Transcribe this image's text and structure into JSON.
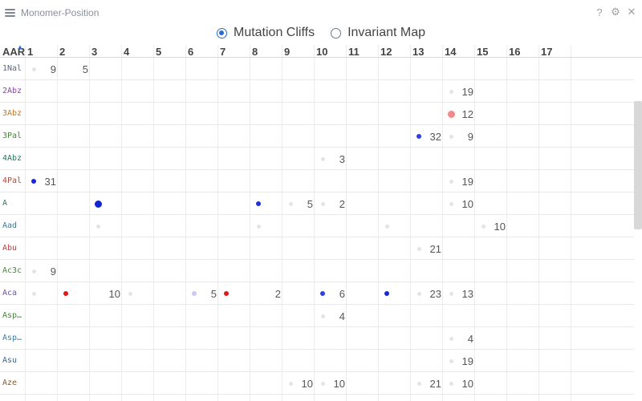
{
  "window": {
    "title": "Monomer-Position",
    "icons": [
      "hamburger-icon",
      "help-icon",
      "settings-icon",
      "close-icon"
    ],
    "help_glyph": "?",
    "settings_glyph": "⚙",
    "close_glyph": "✕"
  },
  "modes": [
    {
      "label": "Mutation Cliffs",
      "checked": true
    },
    {
      "label": "Invariant Map",
      "checked": false
    }
  ],
  "grid": {
    "first_header": "AAR",
    "positions": [
      "1",
      "2",
      "3",
      "4",
      "5",
      "6",
      "7",
      "8",
      "9",
      "10",
      "11",
      "12",
      "13",
      "14",
      "15",
      "16",
      "17"
    ],
    "rows": [
      {
        "label": "1Nal",
        "color": "#5c6c82",
        "cells": [
          {
            "pos": 1,
            "dot": "tiny",
            "color": "#e3e3ea",
            "count": "9"
          },
          {
            "pos": 2,
            "dot": null,
            "color": null,
            "count": "5"
          }
        ]
      },
      {
        "label": "2Abz",
        "color": "#8a3fb0",
        "cells": [
          {
            "pos": 14,
            "dot": "tiny",
            "color": "#e3e3ea",
            "count": "19"
          }
        ]
      },
      {
        "label": "3Abz",
        "color": "#c8761a",
        "cells": [
          {
            "pos": 14,
            "dot": "large",
            "color": "#f28a8a",
            "count": "12"
          }
        ]
      },
      {
        "label": "3Pal",
        "color": "#3c8a2e",
        "cells": [
          {
            "pos": 13,
            "dot": "small",
            "color": "#2f3fe8",
            "count": "32"
          },
          {
            "pos": 14,
            "dot": "tiny",
            "color": "#e3e3ea",
            "count": "9"
          }
        ]
      },
      {
        "label": "4Abz",
        "color": "#1f7a5c",
        "cells": [
          {
            "pos": 10,
            "dot": "tiny",
            "color": "#e3e3ea",
            "count": "3"
          }
        ]
      },
      {
        "label": "4Pal",
        "color": "#b8452f",
        "cells": [
          {
            "pos": 1,
            "dot": "small",
            "color": "#1828d8",
            "count": "31"
          },
          {
            "pos": 14,
            "dot": "tiny",
            "color": "#e3e3ea",
            "count": "19"
          }
        ]
      },
      {
        "label": "A",
        "color": "#2a7a6a",
        "cells": [
          {
            "pos": 3,
            "dot": "large",
            "color": "#1326d6",
            "count": ""
          },
          {
            "pos": 8,
            "dot": "small",
            "color": "#1e30de",
            "count": ""
          },
          {
            "pos": 9,
            "dot": "tiny",
            "color": "#e3e3ea",
            "count": "5"
          },
          {
            "pos": 10,
            "dot": "tiny",
            "color": "#e3e3ea",
            "count": "2"
          },
          {
            "pos": 14,
            "dot": "tiny",
            "color": "#e3e3ea",
            "count": "10"
          }
        ]
      },
      {
        "label": "Aad",
        "color": "#2a7fa8",
        "cells": [
          {
            "pos": 3,
            "dot": "tiny",
            "color": "#e3e3ea",
            "count": ""
          },
          {
            "pos": 8,
            "dot": "tiny",
            "color": "#e3e3ea",
            "count": ""
          },
          {
            "pos": 12,
            "dot": "tiny",
            "color": "#e3e3ea",
            "count": ""
          },
          {
            "pos": 15,
            "dot": "tiny",
            "color": "#e3e3ea",
            "count": "10"
          }
        ]
      },
      {
        "label": "Abu",
        "color": "#c83a3a",
        "cells": [
          {
            "pos": 13,
            "dot": "tiny",
            "color": "#e3e3ea",
            "count": "21"
          }
        ]
      },
      {
        "label": "Ac3c",
        "color": "#3c8a2e",
        "cells": [
          {
            "pos": 1,
            "dot": "tiny",
            "color": "#e3e3ea",
            "count": "9"
          }
        ]
      },
      {
        "label": "Aca",
        "color": "#6a4fb0",
        "cells": [
          {
            "pos": 1,
            "dot": "tiny",
            "color": "#e3e3ea",
            "count": ""
          },
          {
            "pos": 2,
            "dot": "small",
            "color": "#e01818",
            "count": ""
          },
          {
            "pos": 3,
            "dot": null,
            "color": null,
            "count": "10"
          },
          {
            "pos": 4,
            "dot": "tiny",
            "color": "#e3e3ea",
            "count": ""
          },
          {
            "pos": 6,
            "dot": "small",
            "color": "#c8c8f0",
            "count": "5"
          },
          {
            "pos": 7,
            "dot": "small",
            "color": "#e01818",
            "count": ""
          },
          {
            "pos": 8,
            "dot": null,
            "color": null,
            "count": "2"
          },
          {
            "pos": 10,
            "dot": "small",
            "color": "#2f3fe8",
            "count": "6"
          },
          {
            "pos": 12,
            "dot": "small",
            "color": "#1828d8",
            "count": ""
          },
          {
            "pos": 13,
            "dot": "tiny",
            "color": "#e3e3ea",
            "count": "23"
          },
          {
            "pos": 14,
            "dot": "tiny",
            "color": "#e3e3ea",
            "count": "13"
          }
        ]
      },
      {
        "label": "Asp…",
        "color": "#3c8a2e",
        "cells": [
          {
            "pos": 10,
            "dot": "tiny",
            "color": "#e3e3ea",
            "count": "4"
          }
        ]
      },
      {
        "label": "Asp…",
        "color": "#2a7fa8",
        "cells": [
          {
            "pos": 14,
            "dot": "tiny",
            "color": "#e3e3ea",
            "count": "4"
          }
        ]
      },
      {
        "label": "Asu",
        "color": "#2a6a9a",
        "cells": [
          {
            "pos": 14,
            "dot": "tiny",
            "color": "#e3e3ea",
            "count": "19"
          }
        ]
      },
      {
        "label": "Aze",
        "color": "#8a5a2a",
        "cells": [
          {
            "pos": 9,
            "dot": "tiny",
            "color": "#e3e3ea",
            "count": "10"
          },
          {
            "pos": 10,
            "dot": "tiny",
            "color": "#e3e3ea",
            "count": "10"
          },
          {
            "pos": 13,
            "dot": "tiny",
            "color": "#e3e3ea",
            "count": "21"
          },
          {
            "pos": 14,
            "dot": "tiny",
            "color": "#e3e3ea",
            "count": "10"
          }
        ]
      }
    ]
  }
}
